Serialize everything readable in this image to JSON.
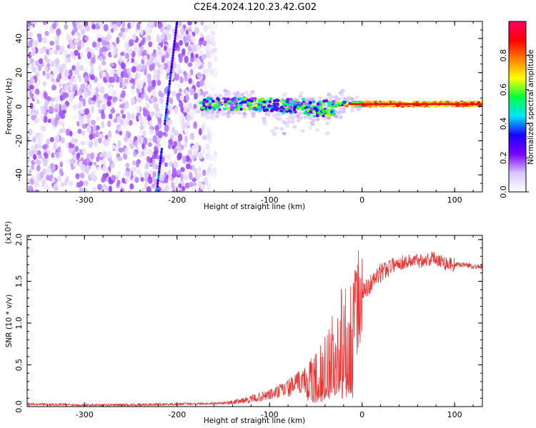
{
  "page_title": "C2E4.2024.120.23.42.G02",
  "chart_data": [
    {
      "type": "heatmap",
      "xlabel": "Height of straight line (km)",
      "ylabel": "Frequency (Hz)",
      "xlim": [
        -362,
        130
      ],
      "ylim": [
        -50,
        50
      ],
      "xticks": [
        -300,
        -200,
        -100,
        0,
        100
      ],
      "yticks": [
        -40,
        -20,
        0,
        20,
        40
      ],
      "colorbar": {
        "label": "Normalized spectral amplitude",
        "range": [
          0,
          1
        ],
        "ticks": [
          "0.0",
          "0.2",
          "0.4",
          "0.6",
          "0.8"
        ],
        "colormap": [
          "#ffffff",
          "#d9c6ff",
          "#7a00ff",
          "#1a00ff",
          "#00e5ff",
          "#00ff40",
          "#ffff00",
          "#ff8000",
          "#ff0000",
          "#ff0060"
        ]
      },
      "features": [
        {
          "name": "noise_region",
          "x_range": [
            -362,
            -158
          ],
          "y_range": [
            -50,
            50
          ],
          "typical_amplitude": 0.12
        },
        {
          "name": "main_signal",
          "x_range": [
            -175,
            130
          ],
          "center_freq_hz": 1.5,
          "peak_amplitude": 0.9
        },
        {
          "name": "diagonal_streak",
          "x_from": -222,
          "y_from": -50,
          "x_to": -200,
          "y_to": 50,
          "amplitude": 0.3
        }
      ],
      "grid": false
    },
    {
      "type": "line",
      "xlabel": "Height of straight line (km)",
      "ylabel": "SNR (10 * v/v)",
      "y_scale_label": "(x10⁴)",
      "xlim": [
        -362,
        130
      ],
      "ylim": [
        0,
        2.05
      ],
      "xticks": [
        -300,
        -200,
        -100,
        0,
        100
      ],
      "yticks": [
        "0.0",
        "0.5",
        "1.0",
        "1.5",
        "2.0"
      ],
      "color": "#ee3333",
      "x": [
        -362,
        -300,
        -250,
        -200,
        -160,
        -140,
        -120,
        -100,
        -80,
        -60,
        -50,
        -40,
        -30,
        -25,
        -20,
        -15,
        -10,
        -5,
        0,
        10,
        20,
        30,
        40,
        50,
        60,
        70,
        80,
        90,
        100,
        110,
        120,
        130
      ],
      "y": [
        0.03,
        0.02,
        0.02,
        0.03,
        0.04,
        0.05,
        0.09,
        0.14,
        0.22,
        0.33,
        0.42,
        0.55,
        0.78,
        0.9,
        0.95,
        0.98,
        1.05,
        1.2,
        1.35,
        1.48,
        1.6,
        1.68,
        1.72,
        1.74,
        1.75,
        1.76,
        1.78,
        1.72,
        1.7,
        1.7,
        1.68,
        1.67
      ],
      "grid": false
    }
  ]
}
